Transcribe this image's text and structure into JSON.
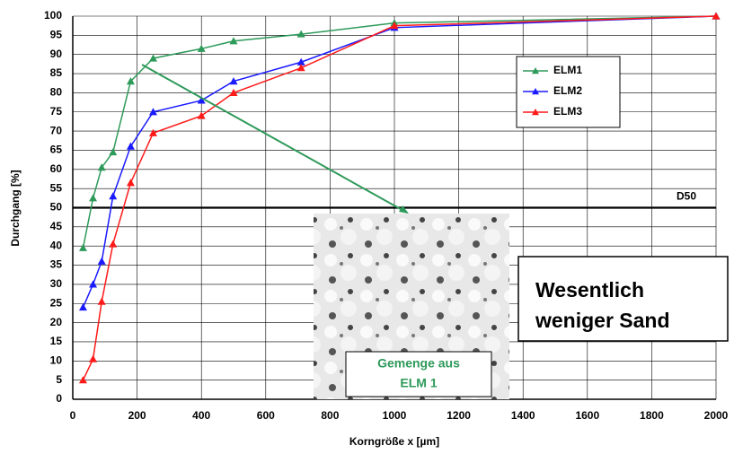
{
  "chart_data": {
    "type": "line",
    "xlabel": "Korngröße x [µm]",
    "ylabel": "Durchgang [%]",
    "x": [
      32,
      63,
      90,
      125,
      180,
      250,
      400,
      500,
      710,
      1000,
      2000
    ],
    "series": [
      {
        "name": "ELM1",
        "color": "#2e9a5a",
        "values": [
          39.5,
          52.5,
          60.5,
          64.5,
          83,
          89,
          91.5,
          93.5,
          95.3,
          98.2,
          100
        ]
      },
      {
        "name": "ELM2",
        "color": "#1a1aff",
        "values": [
          24,
          30,
          36,
          53,
          66,
          75,
          78,
          83,
          88,
          97,
          100
        ]
      },
      {
        "name": "ELM3",
        "color": "#ff1a1a",
        "values": [
          5,
          10.5,
          25.5,
          40.5,
          56.5,
          69.5,
          74,
          80,
          86.5,
          97.5,
          100
        ]
      }
    ],
    "xlim": [
      0,
      2000
    ],
    "xticks": [
      0,
      200,
      400,
      600,
      800,
      1000,
      1200,
      1400,
      1600,
      1800,
      2000
    ],
    "ylim": [
      0,
      100
    ],
    "yticks": [
      0,
      5,
      10,
      15,
      20,
      25,
      30,
      35,
      40,
      45,
      50,
      55,
      60,
      65,
      70,
      75,
      80,
      85,
      90,
      95,
      100
    ],
    "grid": true,
    "reference_line": {
      "value": 50,
      "label": "D50"
    },
    "annotations": {
      "photo_caption": [
        "Gemenge aus",
        "ELM 1"
      ],
      "callout": [
        "Wesentlich",
        "weniger Sand"
      ]
    }
  }
}
